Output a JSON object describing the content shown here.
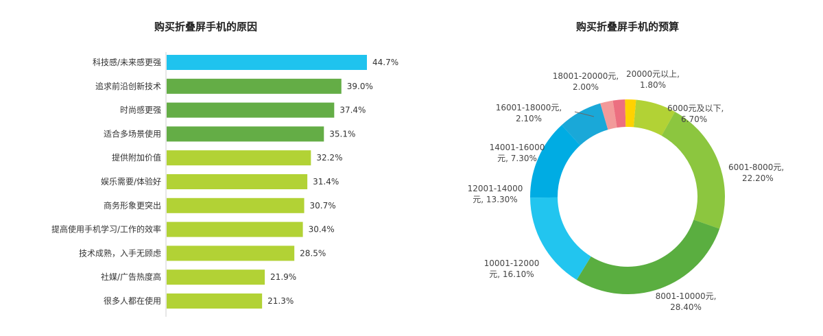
{
  "chart_data": [
    {
      "type": "bar",
      "orientation": "horizontal",
      "title": "购买折叠屏手机的原因",
      "categories": [
        "科技感/未来感更强",
        "追求前沿创新技术",
        "时尚感更强",
        "适合多场景使用",
        "提供附加价值",
        "娱乐需要/体验好",
        "商务形象更突出",
        "提高使用手机学习/工作的效率",
        "技术成熟，入手无顾虑",
        "社媒/广告热度高",
        "很多人都在使用"
      ],
      "values": [
        44.7,
        39.0,
        37.4,
        35.1,
        32.2,
        31.4,
        30.7,
        30.4,
        28.5,
        21.9,
        21.3
      ],
      "value_labels": [
        "44.7%",
        "39.0%",
        "37.4%",
        "35.1%",
        "32.2%",
        "31.4%",
        "30.7%",
        "30.4%",
        "28.5%",
        "21.9%",
        "21.3%"
      ],
      "unit": "%",
      "xlim": [
        0,
        44.7
      ],
      "colors": [
        "#1fc3ee",
        "#64ad46",
        "#64ad46",
        "#64ad46",
        "#b2d235",
        "#b2d235",
        "#b2d235",
        "#b2d235",
        "#b2d235",
        "#b2d235",
        "#b2d235"
      ]
    },
    {
      "type": "pie",
      "subtype": "donut",
      "title": "购买折叠屏手机的预算",
      "slices": [
        {
          "label": "6000元及以下,",
          "value": 6.7,
          "value_label": "6.70%",
          "color": "#b2d235"
        },
        {
          "label": "6001-8000元,",
          "value": 22.2,
          "value_label": "22.20%",
          "color": "#8cc63f"
        },
        {
          "label": "8001-10000元,",
          "value": 28.4,
          "value_label": "28.40%",
          "color": "#5aae40"
        },
        {
          "label": "10001-12000",
          "value": 16.1,
          "value_label": "元, 16.10%",
          "color": "#22c5ef"
        },
        {
          "label": "12001-14000",
          "value": 13.3,
          "value_label": "元, 13.30%",
          "color": "#00ace3"
        },
        {
          "label": "14001-16000",
          "value": 7.3,
          "value_label": "元, 7.30%",
          "color": "#1aa8d8"
        },
        {
          "label": "16001-18000元,",
          "value": 2.1,
          "value_label": "2.10%",
          "color": "#f29a9a"
        },
        {
          "label": "18001-20000元,",
          "value": 2.0,
          "value_label": "2.00%",
          "color": "#ec6f80"
        },
        {
          "label": "20000元以上,",
          "value": 1.8,
          "value_label": "1.80%",
          "color": "#ffd200"
        }
      ]
    }
  ]
}
